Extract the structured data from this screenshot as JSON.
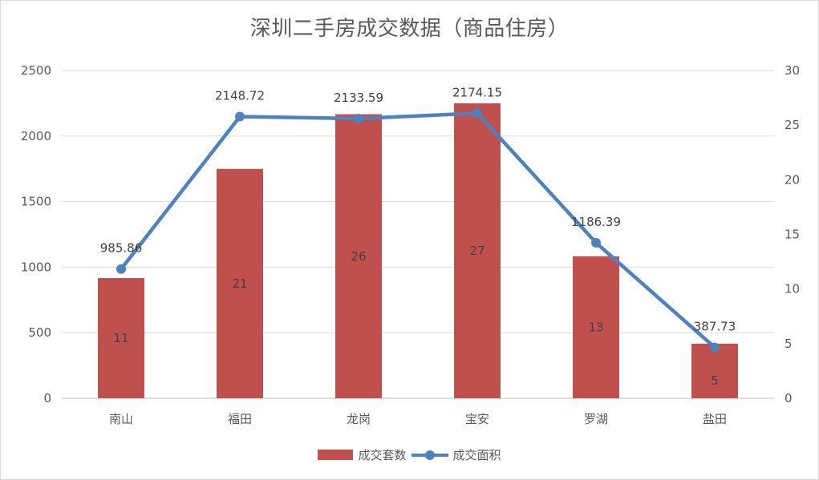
{
  "chart_data": {
    "type": "bar",
    "title": "深圳二手房成交数据（商品住房）",
    "categories": [
      "南山",
      "福田",
      "龙岗",
      "宝安",
      "罗湖",
      "盐田"
    ],
    "series": [
      {
        "name": "成交套数",
        "type": "bar",
        "axis": "right",
        "values": [
          11,
          21,
          26,
          27,
          13,
          5
        ],
        "data_labels": [
          "11",
          "21",
          "26",
          "27",
          "13",
          "5"
        ],
        "color": "#c0504d"
      },
      {
        "name": "成交面积",
        "type": "line",
        "axis": "left",
        "values": [
          985.86,
          2148.72,
          2133.59,
          2174.15,
          1186.39,
          387.73
        ],
        "data_labels": [
          "985.86",
          "2148.72",
          "2133.59",
          "2174.15",
          "1186.39",
          "387.73"
        ],
        "color": "#4f81bd"
      }
    ],
    "y_left": {
      "ylim": [
        0,
        2500
      ],
      "ticks": [
        "0",
        "500",
        "1000",
        "1500",
        "2000",
        "2500"
      ]
    },
    "y_right": {
      "ylim": [
        0,
        30
      ],
      "ticks": [
        "0",
        "5",
        "10",
        "15",
        "20",
        "25",
        "30"
      ]
    },
    "grid": true,
    "legend_position": "bottom",
    "gridline_color": "#d9d9d9",
    "axis_label_color": "#595959"
  }
}
